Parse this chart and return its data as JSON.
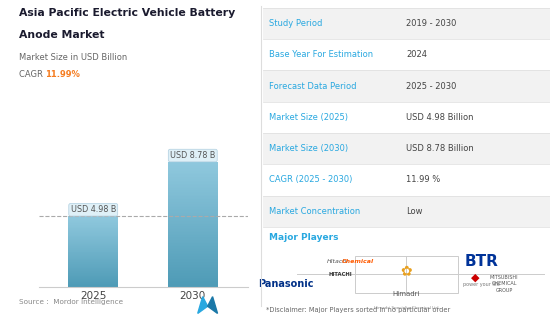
{
  "title_line1": "Asia Pacific Electric Vehicle Battery",
  "title_line2": "Anode Market",
  "subtitle": "Market Size in USD Billion",
  "cagr_label": "CAGR",
  "cagr_value": "11.99%",
  "bar_years": [
    "2025",
    "2030"
  ],
  "bar_values": [
    4.98,
    8.78
  ],
  "bar_labels": [
    "USD 4.98 B",
    "USD 8.78 B"
  ],
  "bar_color_light": "#8fc8dd",
  "bar_color_dark": "#4d9ab5",
  "ylim": [
    0,
    10.5
  ],
  "dashed_line_y": 4.98,
  "source_text": "Source :  Mordor Intelligence",
  "table_labels": [
    "Study Period",
    "Base Year For Estimation",
    "Forecast Data Period",
    "Market Size (2025)",
    "Market Size (2030)",
    "CAGR (2025 - 2030)",
    "Market Concentration"
  ],
  "table_values": [
    "2019 - 2030",
    "2024",
    "2025 - 2030",
    "USD 4.98 Billion",
    "USD 8.78 Billion",
    "11.99 %",
    "Low"
  ],
  "major_players_label": "Major Players",
  "disclaimer": "*Disclaimer: Major Players sorted in no particular order",
  "label_color": "#29a8e0",
  "title_color": "#1a1a2e",
  "table_label_color": "#29a8e0",
  "table_value_color": "#444444",
  "bg_color": "#ffffff",
  "cagr_color": "#f57c20",
  "row_alt_color": "#f2f2f2",
  "divider_color": "#dddddd"
}
